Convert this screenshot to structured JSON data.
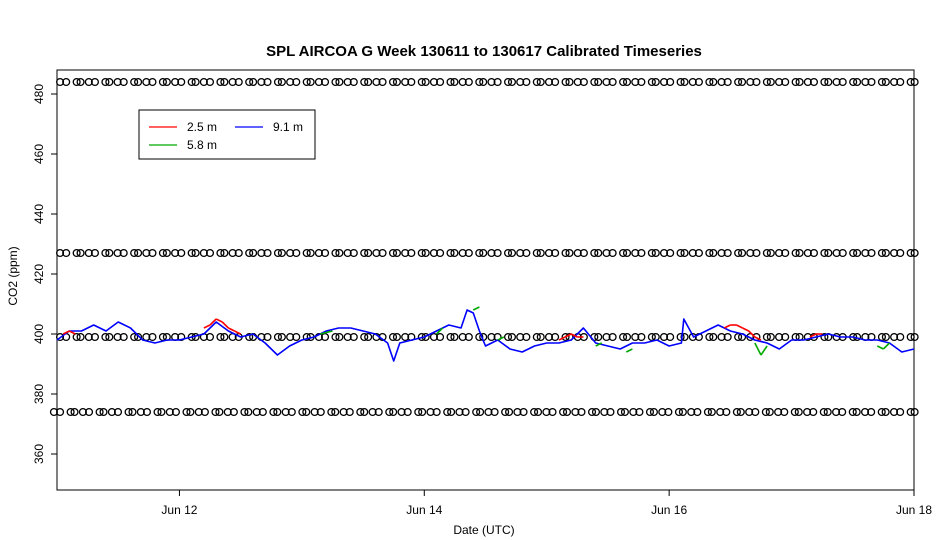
{
  "chart_data": {
    "type": "line",
    "title": "SPL AIRCOA G  Week 130611 to 130617  Calibrated Timeseries",
    "xlabel": "Date (UTC)",
    "ylabel": "CO2 (ppm)",
    "xlim": [
      11.0,
      18.0
    ],
    "ylim": [
      348.0,
      488.0
    ],
    "x_ticks": [
      {
        "value": 12,
        "label": "Jun 12"
      },
      {
        "value": 14,
        "label": "Jun 14"
      },
      {
        "value": 16,
        "label": "Jun 16"
      },
      {
        "value": 18,
        "label": "Jun 18"
      }
    ],
    "y_ticks": [
      360,
      380,
      400,
      420,
      440,
      460,
      480
    ],
    "grid": false,
    "legend": {
      "placement": "top-left",
      "entries": [
        {
          "label": "2.5 m",
          "color": "#ff0000"
        },
        {
          "label": "5.8 m",
          "color": "#00aa00"
        },
        {
          "label": "9.1 m",
          "color": "#0000ff"
        }
      ]
    },
    "series": [
      {
        "name": "9.1 m",
        "color": "#0000ff",
        "x": [
          11.0,
          11.1,
          11.2,
          11.3,
          11.4,
          11.5,
          11.6,
          11.7,
          11.8,
          11.9,
          12.0,
          12.1,
          12.2,
          12.3,
          12.4,
          12.5,
          12.6,
          12.7,
          12.8,
          12.9,
          13.0,
          13.1,
          13.2,
          13.3,
          13.4,
          13.5,
          13.6,
          13.7,
          13.75,
          13.8,
          13.9,
          14.0,
          14.1,
          14.2,
          14.3,
          14.35,
          14.4,
          14.45,
          14.5,
          14.6,
          14.7,
          14.8,
          14.9,
          15.0,
          15.1,
          15.2,
          15.3,
          15.4,
          15.5,
          15.6,
          15.7,
          15.8,
          15.9,
          16.0,
          16.1,
          16.12,
          16.2,
          16.3,
          16.4,
          16.5,
          16.6,
          16.7,
          16.8,
          16.9,
          17.0,
          17.1,
          17.2,
          17.3,
          17.4,
          17.5,
          17.6,
          17.7,
          17.8,
          17.9,
          18.0
        ],
        "values": [
          398,
          401,
          401,
          403,
          401,
          404,
          402,
          398,
          397,
          398,
          398,
          399,
          400,
          404,
          401,
          399,
          400,
          397,
          393,
          396,
          398,
          399,
          401,
          402,
          402,
          401,
          400,
          397,
          391,
          397,
          398,
          399,
          401,
          403,
          402,
          408,
          407,
          401,
          396,
          398,
          395,
          394,
          396,
          397,
          397,
          398,
          402,
          397,
          396,
          395,
          397,
          397,
          398,
          396,
          397,
          405,
          399,
          401,
          403,
          401,
          400,
          398,
          397,
          395,
          398,
          398,
          399,
          400,
          399,
          399,
          398,
          398,
          397,
          394,
          395
        ]
      },
      {
        "name": "2.5 m",
        "color": "#ff0000",
        "x": [
          11.05,
          11.1,
          11.15,
          12.2,
          12.25,
          12.3,
          12.35,
          12.4,
          12.45,
          12.5,
          15.1,
          15.15,
          15.2,
          15.25,
          15.3,
          16.45,
          16.5,
          16.55,
          16.6,
          16.65,
          16.7,
          16.75,
          17.15,
          17.2,
          17.25
        ],
        "values": [
          400,
          401,
          400,
          402,
          403,
          405,
          404,
          402,
          401,
          400,
          398,
          399,
          400,
          399,
          399,
          402,
          403,
          403,
          402,
          401,
          399,
          398,
          399,
          400,
          400
        ]
      },
      {
        "name": "5.8 m",
        "color": "#00aa00",
        "x": [
          11.2,
          11.3,
          13.15,
          13.25,
          14.1,
          14.15,
          14.4,
          14.45,
          14.6,
          14.65,
          15.4,
          15.45,
          15.65,
          15.7,
          16.7,
          16.75,
          16.8,
          17.7,
          17.75,
          17.8
        ],
        "values": [
          401,
          402,
          400,
          401,
          400,
          402,
          408,
          409,
          398,
          399,
          396,
          397,
          394,
          395,
          397,
          393,
          396,
          396,
          395,
          397
        ]
      }
    ],
    "reference_markers": {
      "shape": "open-circle",
      "rows": [
        {
          "y": 484,
          "x_start": 11.05,
          "x_end": 17.98,
          "count": 60
        },
        {
          "y": 427,
          "x_start": 11.05,
          "x_end": 17.98,
          "count": 60
        },
        {
          "y": 399,
          "x_start": 11.05,
          "x_end": 17.98,
          "count": 60
        },
        {
          "y": 374,
          "x_start": 11.0,
          "x_end": 17.98,
          "count": 60
        }
      ]
    }
  }
}
